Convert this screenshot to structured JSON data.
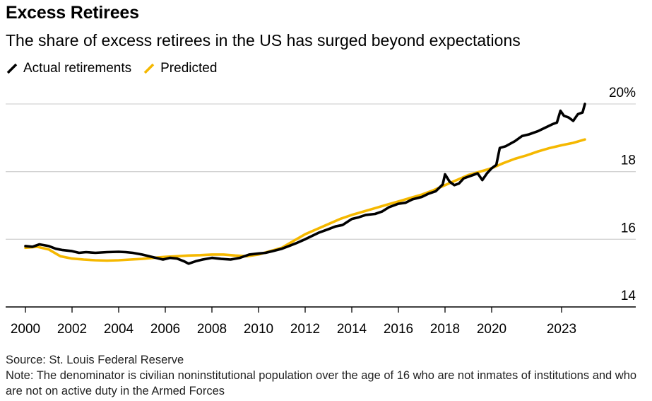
{
  "header": {
    "title": "Excess Retirees",
    "subtitle": "The share of excess retirees in the US has surged beyond expectations"
  },
  "legend": {
    "items": [
      {
        "label": "Actual retirements",
        "color": "#000000",
        "icon": "diagonal-line-icon"
      },
      {
        "label": "Predicted",
        "color": "#f5b800",
        "icon": "diagonal-line-icon"
      }
    ]
  },
  "footer": {
    "source": "Source: St. Louis Federal Reserve",
    "note": "Note: The denominator is civilian noninstitutional population over the age of 16 who are not inmates of institutions and who are not on active duty in the Armed Forces"
  },
  "chart_data": {
    "type": "line",
    "title": "Excess Retirees",
    "subtitle": "The share of excess retirees in the US has surged beyond expectations",
    "xlabel": "",
    "ylabel": "",
    "xlim": [
      2000,
      2024.2
    ],
    "ylim": [
      14,
      20
    ],
    "x_ticks": [
      "2000",
      "2002",
      "2004",
      "2006",
      "2008",
      "2010",
      "2012",
      "2014",
      "2016",
      "2018",
      "2020",
      "2023"
    ],
    "x_tick_values": [
      2000,
      2002,
      2004,
      2006,
      2008,
      2010,
      2012,
      2014,
      2016,
      2018,
      2020,
      2023
    ],
    "y_ticks": [
      "14",
      "16",
      "18",
      "20%"
    ],
    "y_tick_values": [
      14,
      16,
      18,
      20
    ],
    "grid": "horizontal",
    "legend_position": "top-left",
    "series": [
      {
        "name": "Actual retirements",
        "color": "#000000",
        "points": [
          [
            2000.0,
            15.8
          ],
          [
            2000.3,
            15.78
          ],
          [
            2000.6,
            15.85
          ],
          [
            2001.0,
            15.8
          ],
          [
            2001.3,
            15.72
          ],
          [
            2001.6,
            15.68
          ],
          [
            2002.0,
            15.65
          ],
          [
            2002.3,
            15.6
          ],
          [
            2002.6,
            15.62
          ],
          [
            2003.0,
            15.6
          ],
          [
            2003.5,
            15.62
          ],
          [
            2004.0,
            15.63
          ],
          [
            2004.3,
            15.62
          ],
          [
            2004.6,
            15.6
          ],
          [
            2005.0,
            15.55
          ],
          [
            2005.3,
            15.5
          ],
          [
            2005.6,
            15.45
          ],
          [
            2005.9,
            15.4
          ],
          [
            2006.2,
            15.45
          ],
          [
            2006.5,
            15.43
          ],
          [
            2006.8,
            15.35
          ],
          [
            2007.0,
            15.28
          ],
          [
            2007.3,
            15.35
          ],
          [
            2007.6,
            15.4
          ],
          [
            2008.0,
            15.45
          ],
          [
            2008.4,
            15.42
          ],
          [
            2008.8,
            15.4
          ],
          [
            2009.2,
            15.45
          ],
          [
            2009.6,
            15.55
          ],
          [
            2010.0,
            15.58
          ],
          [
            2010.3,
            15.6
          ],
          [
            2010.6,
            15.65
          ],
          [
            2011.0,
            15.72
          ],
          [
            2011.3,
            15.8
          ],
          [
            2011.6,
            15.88
          ],
          [
            2012.0,
            16.0
          ],
          [
            2012.3,
            16.1
          ],
          [
            2012.6,
            16.2
          ],
          [
            2013.0,
            16.3
          ],
          [
            2013.3,
            16.38
          ],
          [
            2013.6,
            16.42
          ],
          [
            2014.0,
            16.6
          ],
          [
            2014.3,
            16.65
          ],
          [
            2014.6,
            16.72
          ],
          [
            2015.0,
            16.75
          ],
          [
            2015.3,
            16.82
          ],
          [
            2015.6,
            16.95
          ],
          [
            2016.0,
            17.05
          ],
          [
            2016.3,
            17.08
          ],
          [
            2016.6,
            17.18
          ],
          [
            2017.0,
            17.25
          ],
          [
            2017.3,
            17.35
          ],
          [
            2017.6,
            17.42
          ],
          [
            2017.9,
            17.62
          ],
          [
            2018.0,
            17.92
          ],
          [
            2018.2,
            17.7
          ],
          [
            2018.4,
            17.6
          ],
          [
            2018.6,
            17.65
          ],
          [
            2018.8,
            17.8
          ],
          [
            2019.0,
            17.85
          ],
          [
            2019.2,
            17.9
          ],
          [
            2019.4,
            17.95
          ],
          [
            2019.6,
            17.75
          ],
          [
            2019.8,
            17.95
          ],
          [
            2020.0,
            18.1
          ],
          [
            2020.2,
            18.2
          ],
          [
            2020.35,
            18.7
          ],
          [
            2020.6,
            18.75
          ],
          [
            2021.0,
            18.9
          ],
          [
            2021.3,
            19.05
          ],
          [
            2021.6,
            19.1
          ],
          [
            2022.0,
            19.2
          ],
          [
            2022.3,
            19.3
          ],
          [
            2022.6,
            19.4
          ],
          [
            2022.8,
            19.45
          ],
          [
            2022.95,
            19.8
          ],
          [
            2023.1,
            19.65
          ],
          [
            2023.3,
            19.6
          ],
          [
            2023.5,
            19.5
          ],
          [
            2023.7,
            19.7
          ],
          [
            2023.9,
            19.75
          ],
          [
            2024.0,
            20.0
          ]
        ]
      },
      {
        "name": "Predicted",
        "color": "#f5b800",
        "points": [
          [
            2000.0,
            15.75
          ],
          [
            2000.5,
            15.78
          ],
          [
            2001.0,
            15.7
          ],
          [
            2001.5,
            15.5
          ],
          [
            2002.0,
            15.43
          ],
          [
            2002.5,
            15.4
          ],
          [
            2003.0,
            15.38
          ],
          [
            2003.5,
            15.37
          ],
          [
            2004.0,
            15.38
          ],
          [
            2004.5,
            15.4
          ],
          [
            2005.0,
            15.42
          ],
          [
            2005.5,
            15.45
          ],
          [
            2006.0,
            15.48
          ],
          [
            2006.5,
            15.5
          ],
          [
            2007.0,
            15.52
          ],
          [
            2007.5,
            15.53
          ],
          [
            2008.0,
            15.55
          ],
          [
            2008.5,
            15.55
          ],
          [
            2009.0,
            15.52
          ],
          [
            2009.5,
            15.5
          ],
          [
            2010.0,
            15.55
          ],
          [
            2010.5,
            15.65
          ],
          [
            2011.0,
            15.75
          ],
          [
            2011.5,
            15.95
          ],
          [
            2012.0,
            16.15
          ],
          [
            2012.5,
            16.3
          ],
          [
            2013.0,
            16.45
          ],
          [
            2013.5,
            16.6
          ],
          [
            2014.0,
            16.72
          ],
          [
            2014.5,
            16.82
          ],
          [
            2015.0,
            16.92
          ],
          [
            2015.5,
            17.02
          ],
          [
            2016.0,
            17.12
          ],
          [
            2016.5,
            17.22
          ],
          [
            2017.0,
            17.32
          ],
          [
            2017.5,
            17.45
          ],
          [
            2018.0,
            17.6
          ],
          [
            2018.5,
            17.75
          ],
          [
            2019.0,
            17.9
          ],
          [
            2019.5,
            18.0
          ],
          [
            2020.0,
            18.1
          ],
          [
            2020.5,
            18.25
          ],
          [
            2021.0,
            18.38
          ],
          [
            2021.5,
            18.48
          ],
          [
            2022.0,
            18.6
          ],
          [
            2022.5,
            18.7
          ],
          [
            2023.0,
            18.78
          ],
          [
            2023.5,
            18.85
          ],
          [
            2024.0,
            18.95
          ]
        ]
      }
    ]
  }
}
